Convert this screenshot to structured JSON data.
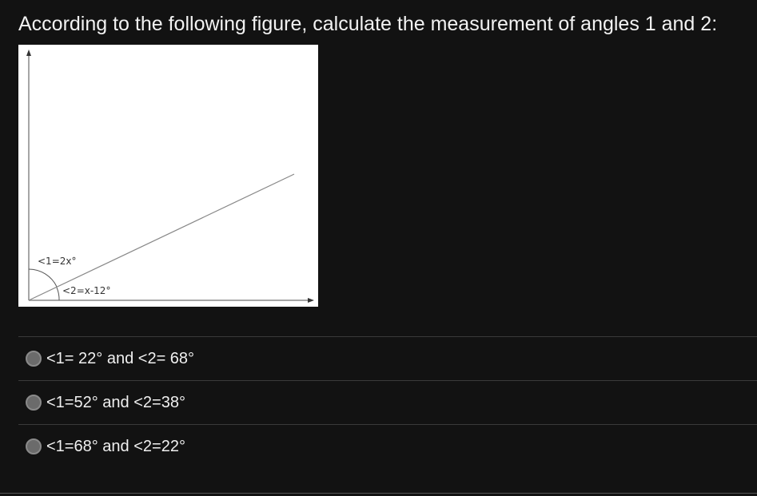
{
  "question": "According to the following figure, calculate the measurement of angles 1 and 2:",
  "figure": {
    "angle1_label": "<1=2x°",
    "angle2_label": "<2=x-12°"
  },
  "options": [
    "<1= 22° and <2= 68°",
    "<1=52° and <2=38°",
    "<1=68° and <2=22°"
  ]
}
